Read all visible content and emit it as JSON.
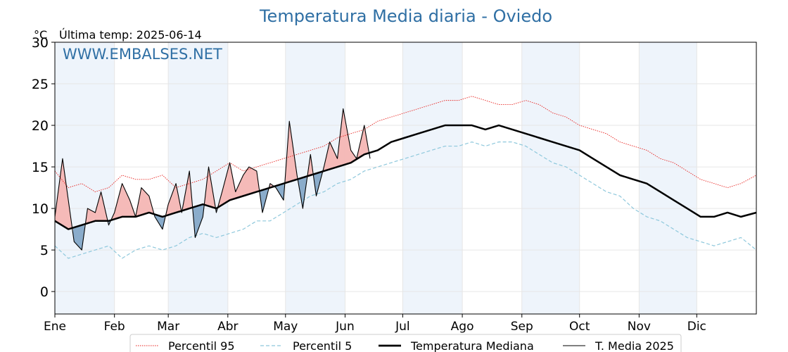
{
  "header": {
    "title": "Temperatura Media diaria - Oviedo",
    "unit": "°C",
    "last_temp": "Última temp: 2025-06-14",
    "watermark": "WWW.EMBALSES.NET"
  },
  "colors": {
    "p95": "#e8231f",
    "p5": "#8ec8dc",
    "median": "#000000",
    "current": "#000000",
    "above_fill": "#f4b6b4",
    "above_fill_dark": "#d9413c",
    "below_fill": "#84a8c8",
    "below_fill_dark": "#2e5f8c",
    "band": "#eef4fb"
  },
  "chart_data": {
    "type": "line",
    "title": "Temperatura Media diaria - Oviedo",
    "ylabel": "°C",
    "ylim": [
      -2.7,
      30
    ],
    "yticks": [
      0,
      5,
      10,
      15,
      20,
      25,
      30
    ],
    "xlim_days": [
      1,
      366
    ],
    "month_labels": [
      "Ene",
      "Feb",
      "Mar",
      "Abr",
      "May",
      "Jun",
      "Jul",
      "Ago",
      "Sep",
      "Oct",
      "Nov",
      "Dic"
    ],
    "month_start_days": [
      1,
      32,
      60,
      91,
      121,
      152,
      182,
      213,
      244,
      274,
      305,
      335
    ],
    "grid": true,
    "legend_position": "bottom-center",
    "series": [
      {
        "name": "Percentil 95",
        "style": "dotted-red",
        "x": [
          1,
          8,
          15,
          22,
          29,
          36,
          43,
          50,
          57,
          64,
          71,
          78,
          85,
          92,
          99,
          106,
          113,
          120,
          127,
          134,
          141,
          148,
          155,
          162,
          169,
          176,
          183,
          190,
          197,
          204,
          211,
          218,
          225,
          232,
          239,
          246,
          253,
          260,
          267,
          274,
          281,
          288,
          295,
          302,
          309,
          316,
          323,
          330,
          337,
          344,
          351,
          358,
          366
        ],
        "y": [
          14.5,
          12.5,
          13.0,
          12.0,
          12.5,
          14.0,
          13.5,
          13.5,
          14.0,
          12.5,
          13.0,
          13.5,
          14.5,
          15.5,
          14.5,
          15.0,
          15.5,
          16.0,
          16.5,
          17.0,
          17.5,
          18.5,
          19.0,
          19.5,
          20.5,
          21.0,
          21.5,
          22.0,
          22.5,
          23.0,
          23.0,
          23.5,
          23.0,
          22.5,
          22.5,
          23.0,
          22.5,
          21.5,
          21.0,
          20.0,
          19.5,
          19.0,
          18.0,
          17.5,
          17.0,
          16.0,
          15.5,
          14.5,
          13.5,
          13.0,
          12.5,
          13.0,
          14.0
        ]
      },
      {
        "name": "Percentil 5",
        "style": "dashed-lightblue",
        "x": [
          1,
          8,
          15,
          22,
          29,
          36,
          43,
          50,
          57,
          64,
          71,
          78,
          85,
          92,
          99,
          106,
          113,
          120,
          127,
          134,
          141,
          148,
          155,
          162,
          169,
          176,
          183,
          190,
          197,
          204,
          211,
          218,
          225,
          232,
          239,
          246,
          253,
          260,
          267,
          274,
          281,
          288,
          295,
          302,
          309,
          316,
          323,
          330,
          337,
          344,
          351,
          358,
          366
        ],
        "y": [
          5.5,
          4.0,
          4.5,
          5.0,
          5.5,
          4.0,
          5.0,
          5.5,
          5.0,
          5.5,
          6.5,
          7.0,
          6.5,
          7.0,
          7.5,
          8.5,
          8.5,
          9.5,
          10.5,
          11.5,
          12.0,
          13.0,
          13.5,
          14.5,
          15.0,
          15.5,
          16.0,
          16.5,
          17.0,
          17.5,
          17.5,
          18.0,
          17.5,
          18.0,
          18.0,
          17.5,
          16.5,
          15.5,
          15.0,
          14.0,
          13.0,
          12.0,
          11.5,
          10.0,
          9.0,
          8.5,
          7.5,
          6.5,
          6.0,
          5.5,
          6.0,
          6.5,
          5.0
        ]
      },
      {
        "name": "Temperatura Mediana",
        "style": "thick-black",
        "x": [
          1,
          8,
          15,
          22,
          29,
          36,
          43,
          50,
          57,
          64,
          71,
          78,
          85,
          92,
          99,
          106,
          113,
          120,
          127,
          134,
          141,
          148,
          155,
          162,
          169,
          176,
          183,
          190,
          197,
          204,
          211,
          218,
          225,
          232,
          239,
          246,
          253,
          260,
          267,
          274,
          281,
          288,
          295,
          302,
          309,
          316,
          323,
          330,
          337,
          344,
          351,
          358,
          366
        ],
        "y": [
          8.5,
          7.5,
          8.0,
          8.5,
          8.5,
          9.0,
          9.0,
          9.5,
          9.0,
          9.5,
          10.0,
          10.5,
          10.0,
          11.0,
          11.5,
          12.0,
          12.5,
          13.0,
          13.5,
          14.0,
          14.5,
          15.0,
          15.5,
          16.5,
          17.0,
          18.0,
          18.5,
          19.0,
          19.5,
          20.0,
          20.0,
          20.0,
          19.5,
          20.0,
          19.5,
          19.0,
          18.5,
          18.0,
          17.5,
          17.0,
          16.0,
          15.0,
          14.0,
          13.5,
          13.0,
          12.0,
          11.0,
          10.0,
          9.0,
          9.0,
          9.5,
          9.0,
          9.5
        ]
      },
      {
        "name": "T. Media 2025",
        "style": "thin-black",
        "x": [
          1,
          5,
          8,
          11,
          15,
          18,
          22,
          25,
          29,
          32,
          36,
          40,
          43,
          46,
          50,
          53,
          57,
          60,
          64,
          67,
          71,
          74,
          78,
          81,
          85,
          88,
          92,
          95,
          99,
          102,
          106,
          109,
          113,
          116,
          120,
          123,
          127,
          130,
          134,
          137,
          141,
          144,
          148,
          151,
          155,
          158,
          162,
          165
        ],
        "y": [
          9.0,
          16.0,
          11.0,
          6.0,
          5.0,
          10.0,
          9.5,
          12.0,
          8.0,
          9.5,
          13.0,
          11.0,
          9.0,
          12.5,
          11.5,
          9.0,
          7.5,
          10.5,
          13.0,
          9.5,
          14.5,
          6.5,
          9.0,
          15.0,
          9.5,
          12.0,
          15.5,
          12.0,
          14.0,
          15.0,
          14.5,
          9.5,
          13.0,
          12.5,
          11.0,
          20.5,
          14.0,
          10.0,
          16.5,
          11.5,
          15.0,
          18.0,
          16.0,
          22.0,
          17.0,
          16.0,
          20.0,
          16.0
        ]
      }
    ]
  }
}
